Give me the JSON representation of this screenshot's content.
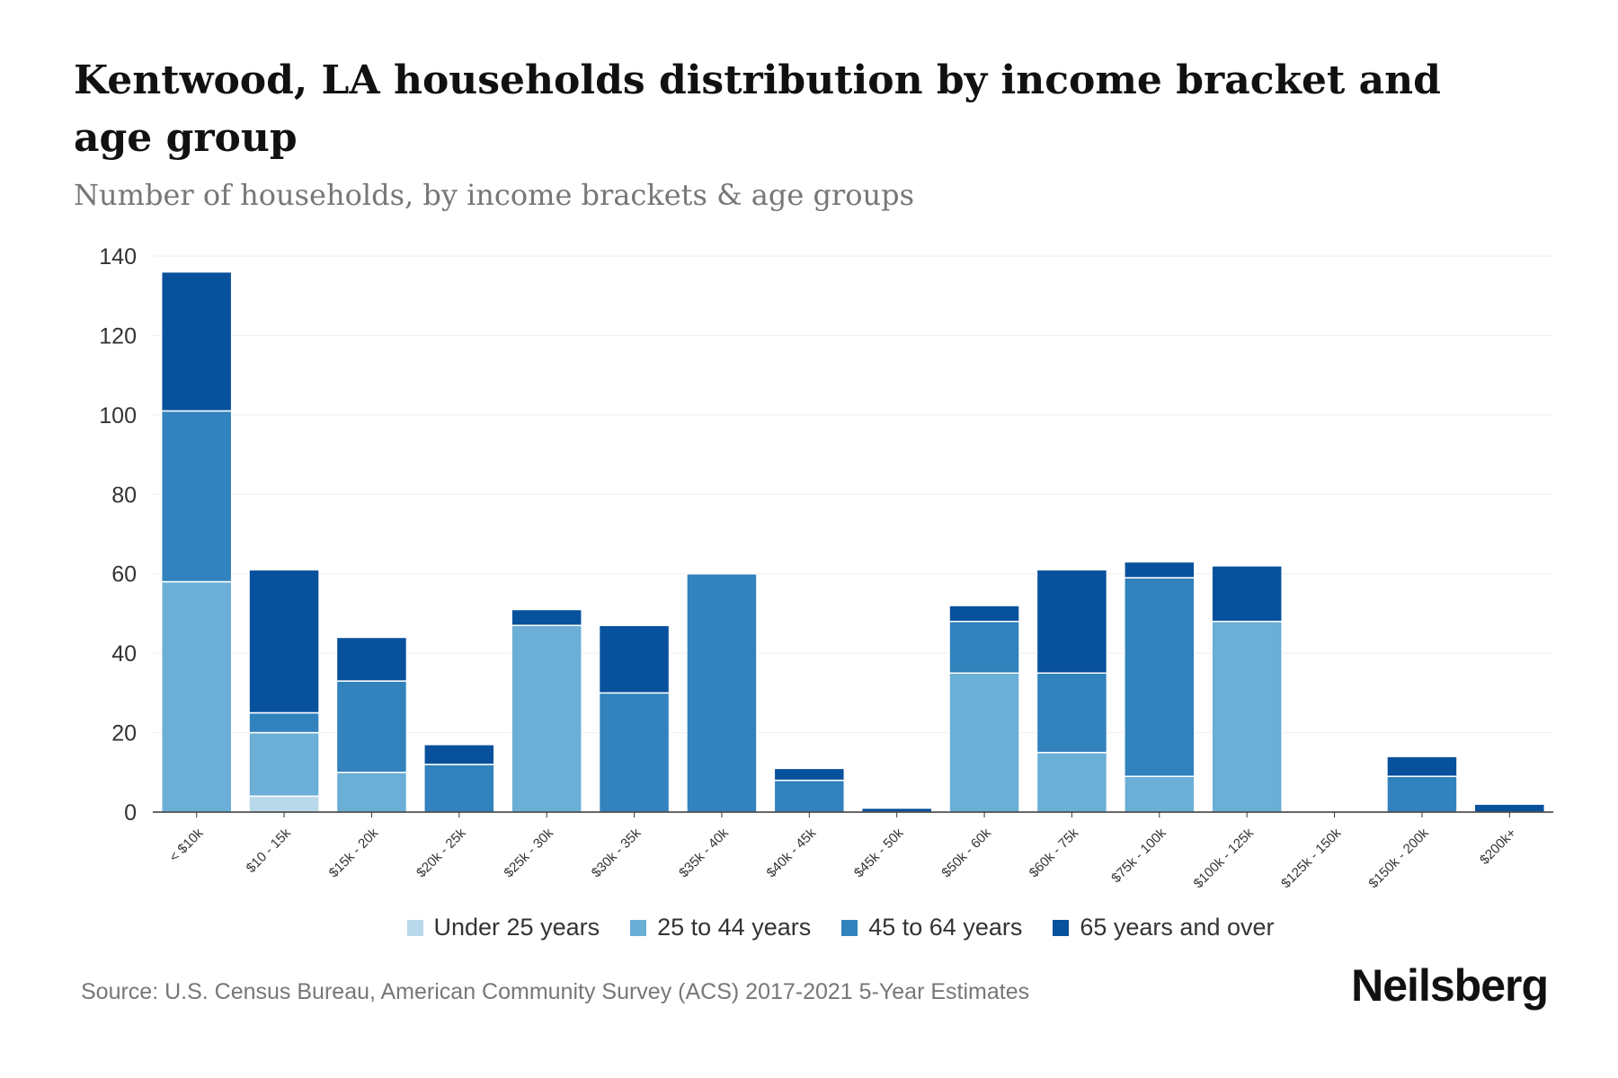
{
  "title": "Kentwood, LA households distribution by income bracket and age group",
  "subtitle": "Number of households, by income brackets & age groups",
  "source": "Source: U.S. Census Bureau, American Community Survey (ACS) 2017-2021 5-Year Estimates",
  "logo": "Neilsberg",
  "chart_data": {
    "type": "bar",
    "stacked": true,
    "categories": [
      "< $10k",
      "$10 - 15k",
      "$15k - 20k",
      "$20k - 25k",
      "$25k - 30k",
      "$30k - 35k",
      "$35k - 40k",
      "$40k - 45k",
      "$45k - 50k",
      "$50k - 60k",
      "$60k - 75k",
      "$75k - 100k",
      "$100k - 125k",
      "$125k - 150k",
      "$150k - 200k",
      "$200k+"
    ],
    "series": [
      {
        "name": "Under 25 years",
        "color": "#b9d8ea",
        "values": [
          0,
          4,
          0,
          0,
          0,
          0,
          0,
          0,
          0,
          0,
          0,
          0,
          0,
          0,
          0,
          0
        ]
      },
      {
        "name": "25 to 44 years",
        "color": "#6baed6",
        "values": [
          58,
          16,
          10,
          0,
          47,
          0,
          0,
          0,
          0,
          35,
          15,
          9,
          48,
          0,
          0,
          0
        ]
      },
      {
        "name": "45 to 64 years",
        "color": "#3182bd",
        "values": [
          43,
          5,
          23,
          12,
          0,
          30,
          60,
          8,
          0,
          13,
          20,
          50,
          0,
          0,
          9,
          0
        ]
      },
      {
        "name": "65 years and over",
        "color": "#08519c",
        "values": [
          35,
          36,
          11,
          5,
          4,
          17,
          0,
          3,
          1,
          4,
          26,
          4,
          14,
          0,
          5,
          2
        ]
      }
    ],
    "yticks": [
      0,
      20,
      40,
      60,
      80,
      100,
      120,
      140
    ],
    "ylim": [
      0,
      140
    ],
    "xlabel": "",
    "ylabel": "",
    "grid": true,
    "legend": "bottom-center"
  }
}
